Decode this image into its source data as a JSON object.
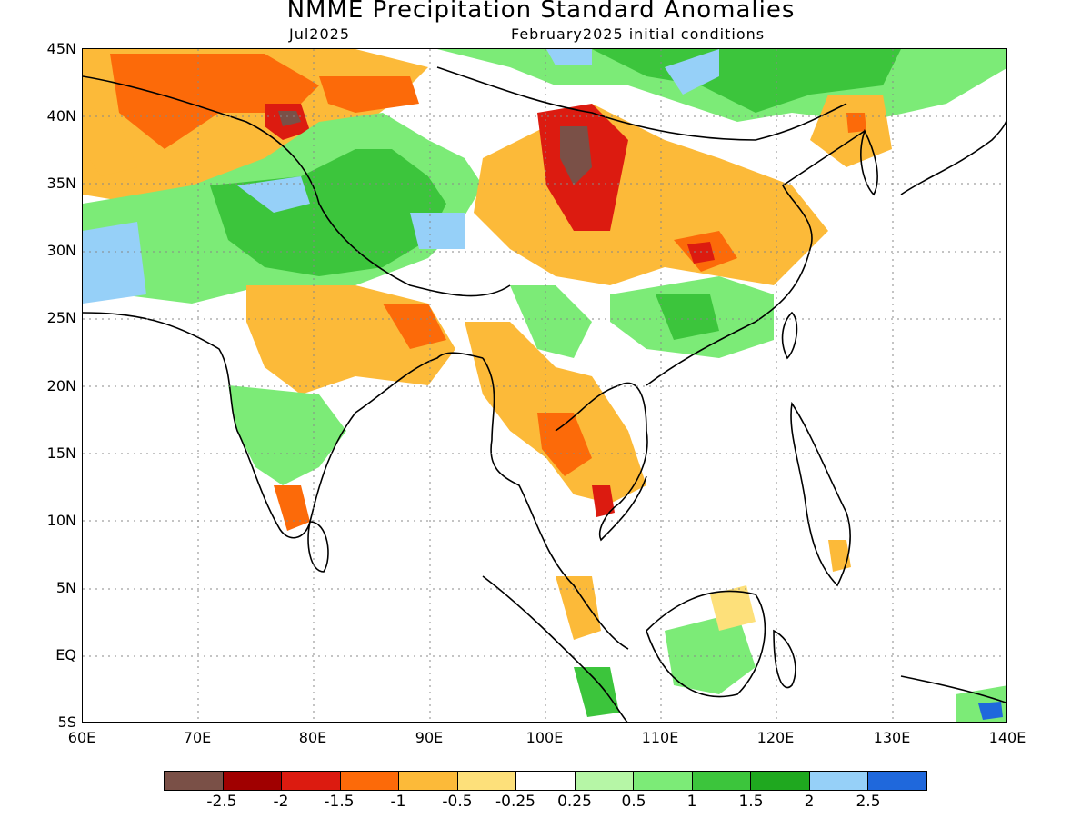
{
  "title": "NMME Precipitation Standard Anomalies",
  "valid_month": "Jul2025",
  "initial_conditions": "February2025 initial conditions",
  "lat_labels": [
    "45N",
    "40N",
    "35N",
    "30N",
    "25N",
    "20N",
    "15N",
    "10N",
    "5N",
    "EQ",
    "5S"
  ],
  "lon_labels": [
    "60E",
    "70E",
    "80E",
    "90E",
    "100E",
    "110E",
    "120E",
    "130E",
    "140E"
  ],
  "colorbar": {
    "colors": [
      "#7a5047",
      "#a00000",
      "#dc1b10",
      "#fc6a09",
      "#fcba39",
      "#fde07a",
      "#ffffff",
      "#b6f6a6",
      "#7ceb77",
      "#3cc53c",
      "#1fa81f",
      "#96d0f8",
      "#1f68dc"
    ],
    "labels": [
      "-2.5",
      "-2",
      "-1.5",
      "-1",
      "-0.5",
      "-0.25",
      "0.25",
      "0.5",
      "1",
      "1.5",
      "2",
      "2.5"
    ]
  },
  "map_extent": {
    "lon_min": 60,
    "lon_max": 140,
    "lat_min": -5,
    "lat_max": 45
  }
}
